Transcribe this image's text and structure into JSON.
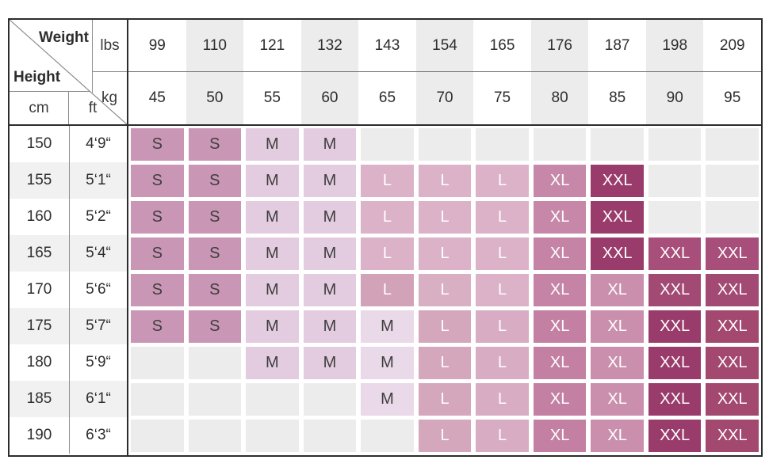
{
  "table": {
    "corner": {
      "weight": "Weight",
      "height": "Height",
      "lbs": "lbs",
      "kg": "kg",
      "cm": "cm",
      "ft": "ft"
    },
    "weights_lbs": [
      "99",
      "110",
      "121",
      "132",
      "143",
      "154",
      "165",
      "176",
      "187",
      "198",
      "209"
    ],
    "weights_kg": [
      "45",
      "50",
      "55",
      "60",
      "65",
      "70",
      "75",
      "80",
      "85",
      "90",
      "95"
    ],
    "rows": [
      {
        "cm": "150",
        "ft": "4‘9“",
        "cells": [
          [
            "S",
            "#ca96b5"
          ],
          [
            "S",
            "#ca96b5"
          ],
          [
            "M",
            "#e4cce0"
          ],
          [
            "M",
            "#e4cce0"
          ],
          null,
          null,
          null,
          null,
          null,
          null,
          null
        ]
      },
      {
        "cm": "155",
        "ft": "5‘1“",
        "cells": [
          [
            "S",
            "#ca96b5"
          ],
          [
            "S",
            "#ca96b5"
          ],
          [
            "M",
            "#e4cce0"
          ],
          [
            "M",
            "#e4cce0"
          ],
          [
            "L",
            "#dbb2c7"
          ],
          [
            "L",
            "#dbb2c7"
          ],
          [
            "L",
            "#dbb2c7"
          ],
          [
            "XL",
            "#c787a8"
          ],
          [
            "XXL",
            "#9a3c6b"
          ],
          null,
          null
        ]
      },
      {
        "cm": "160",
        "ft": "5‘2“",
        "cells": [
          [
            "S",
            "#ca96b5"
          ],
          [
            "S",
            "#ca96b5"
          ],
          [
            "M",
            "#e4cce0"
          ],
          [
            "M",
            "#e4cce0"
          ],
          [
            "L",
            "#dbb2c7"
          ],
          [
            "L",
            "#dbb2c7"
          ],
          [
            "L",
            "#dbb2c7"
          ],
          [
            "XL",
            "#c787a8"
          ],
          [
            "XXL",
            "#9a3c6b"
          ],
          null,
          null
        ]
      },
      {
        "cm": "165",
        "ft": "5‘4“",
        "cells": [
          [
            "S",
            "#ca96b5"
          ],
          [
            "S",
            "#ca96b5"
          ],
          [
            "M",
            "#e4cce0"
          ],
          [
            "M",
            "#e4cce0"
          ],
          [
            "L",
            "#dbb2c7"
          ],
          [
            "L",
            "#dbb2c7"
          ],
          [
            "L",
            "#dbb2c7"
          ],
          [
            "XL",
            "#c583a5"
          ],
          [
            "XXL",
            "#9a3c6b"
          ],
          [
            "XXL",
            "#a84e7a"
          ],
          [
            "XXL",
            "#a84e7a"
          ]
        ]
      },
      {
        "cm": "170",
        "ft": "5‘6“",
        "cells": [
          [
            "S",
            "#ca96b5"
          ],
          [
            "S",
            "#ca96b5"
          ],
          [
            "M",
            "#e4cce0"
          ],
          [
            "M",
            "#e4cce0"
          ],
          [
            "L",
            "#d2a2b8"
          ],
          [
            "L",
            "#d9afc4"
          ],
          [
            "L",
            "#dbb2c7"
          ],
          [
            "XL",
            "#c583a5"
          ],
          [
            "XL",
            "#ca8fad"
          ],
          [
            "XXL",
            "#a34a74"
          ],
          [
            "XXL",
            "#a34a74"
          ]
        ]
      },
      {
        "cm": "175",
        "ft": "5‘7“",
        "cells": [
          [
            "S",
            "#ca96b5"
          ],
          [
            "S",
            "#ca96b5"
          ],
          [
            "M",
            "#e4cce0"
          ],
          [
            "M",
            "#e4cce0"
          ],
          [
            "M",
            "#ead9e8"
          ],
          [
            "L",
            "#d4a7bd"
          ],
          [
            "L",
            "#d8adc3"
          ],
          [
            "XL",
            "#c480a3"
          ],
          [
            "XL",
            "#ca8fad"
          ],
          [
            "XXL",
            "#9a3c6b"
          ],
          [
            "XXL",
            "#a3486f"
          ]
        ]
      },
      {
        "cm": "180",
        "ft": "5‘9“",
        "cells": [
          null,
          null,
          [
            "M",
            "#e4cce0"
          ],
          [
            "M",
            "#e4cce0"
          ],
          [
            "M",
            "#ead9e8"
          ],
          [
            "L",
            "#d4a7bd"
          ],
          [
            "L",
            "#d8adc3"
          ],
          [
            "XL",
            "#c480a3"
          ],
          [
            "XL",
            "#ca8fad"
          ],
          [
            "XXL",
            "#9a3c6b"
          ],
          [
            "XXL",
            "#a3486f"
          ]
        ]
      },
      {
        "cm": "185",
        "ft": "6‘1“",
        "cells": [
          null,
          null,
          null,
          null,
          [
            "M",
            "#ead9e8"
          ],
          [
            "L",
            "#d4a7bd"
          ],
          [
            "L",
            "#d8adc3"
          ],
          [
            "XL",
            "#c480a3"
          ],
          [
            "XL",
            "#ca8fad"
          ],
          [
            "XXL",
            "#9a3c6b"
          ],
          [
            "XXL",
            "#a3486f"
          ]
        ]
      },
      {
        "cm": "190",
        "ft": "6‘3“",
        "cells": [
          null,
          null,
          null,
          null,
          null,
          [
            "L",
            "#d4a7bd"
          ],
          [
            "L",
            "#d8adc3"
          ],
          [
            "XL",
            "#c480a3"
          ],
          [
            "XL",
            "#ca8fad"
          ],
          [
            "XXL",
            "#9a3c6b"
          ],
          [
            "XXL",
            "#a3486f"
          ]
        ]
      }
    ]
  },
  "colors": {
    "border_dark": "#2c2c2c",
    "thin_line": "#8c8c8c",
    "header_stripe": "#ececec",
    "row_stripe": "#f1f1f1",
    "empty_cell": "#ececec",
    "header_text": "#2d2d2d",
    "size_text_dark": "#3e3e3e",
    "size_text_light": "#ffffff"
  },
  "chart_data": {
    "type": "heatmap",
    "x_axis": {
      "unit_labels": [
        "lbs",
        "kg"
      ],
      "lbs": [
        99,
        110,
        121,
        132,
        143,
        154,
        165,
        176,
        187,
        198,
        209
      ],
      "kg": [
        45,
        50,
        55,
        60,
        65,
        70,
        75,
        80,
        85,
        90,
        95
      ]
    },
    "y_axis": {
      "unit_labels": [
        "cm",
        "ft"
      ],
      "cm": [
        150,
        155,
        160,
        165,
        170,
        175,
        180,
        185,
        190
      ],
      "ft": [
        "4‘9“",
        "5‘1“",
        "5‘2“",
        "5‘4“",
        "5‘6“",
        "5‘7“",
        "5‘9“",
        "6‘1“",
        "6‘3“"
      ]
    },
    "legend_values": [
      "S",
      "M",
      "L",
      "XL",
      "XXL"
    ],
    "values": [
      [
        "S",
        "S",
        "M",
        "M",
        null,
        null,
        null,
        null,
        null,
        null,
        null
      ],
      [
        "S",
        "S",
        "M",
        "M",
        "L",
        "L",
        "L",
        "XL",
        "XXL",
        null,
        null
      ],
      [
        "S",
        "S",
        "M",
        "M",
        "L",
        "L",
        "L",
        "XL",
        "XXL",
        null,
        null
      ],
      [
        "S",
        "S",
        "M",
        "M",
        "L",
        "L",
        "L",
        "XL",
        "XXL",
        "XXL",
        "XXL"
      ],
      [
        "S",
        "S",
        "M",
        "M",
        "L",
        "L",
        "L",
        "XL",
        "XL",
        "XXL",
        "XXL"
      ],
      [
        "S",
        "S",
        "M",
        "M",
        "M",
        "L",
        "L",
        "XL",
        "XL",
        "XXL",
        "XXL"
      ],
      [
        null,
        null,
        "M",
        "M",
        "M",
        "L",
        "L",
        "XL",
        "XL",
        "XXL",
        "XXL"
      ],
      [
        null,
        null,
        null,
        null,
        "M",
        "L",
        "L",
        "XL",
        "XL",
        "XXL",
        "XXL"
      ],
      [
        null,
        null,
        null,
        null,
        null,
        "L",
        "L",
        "XL",
        "XL",
        "XXL",
        "XXL"
      ]
    ]
  }
}
